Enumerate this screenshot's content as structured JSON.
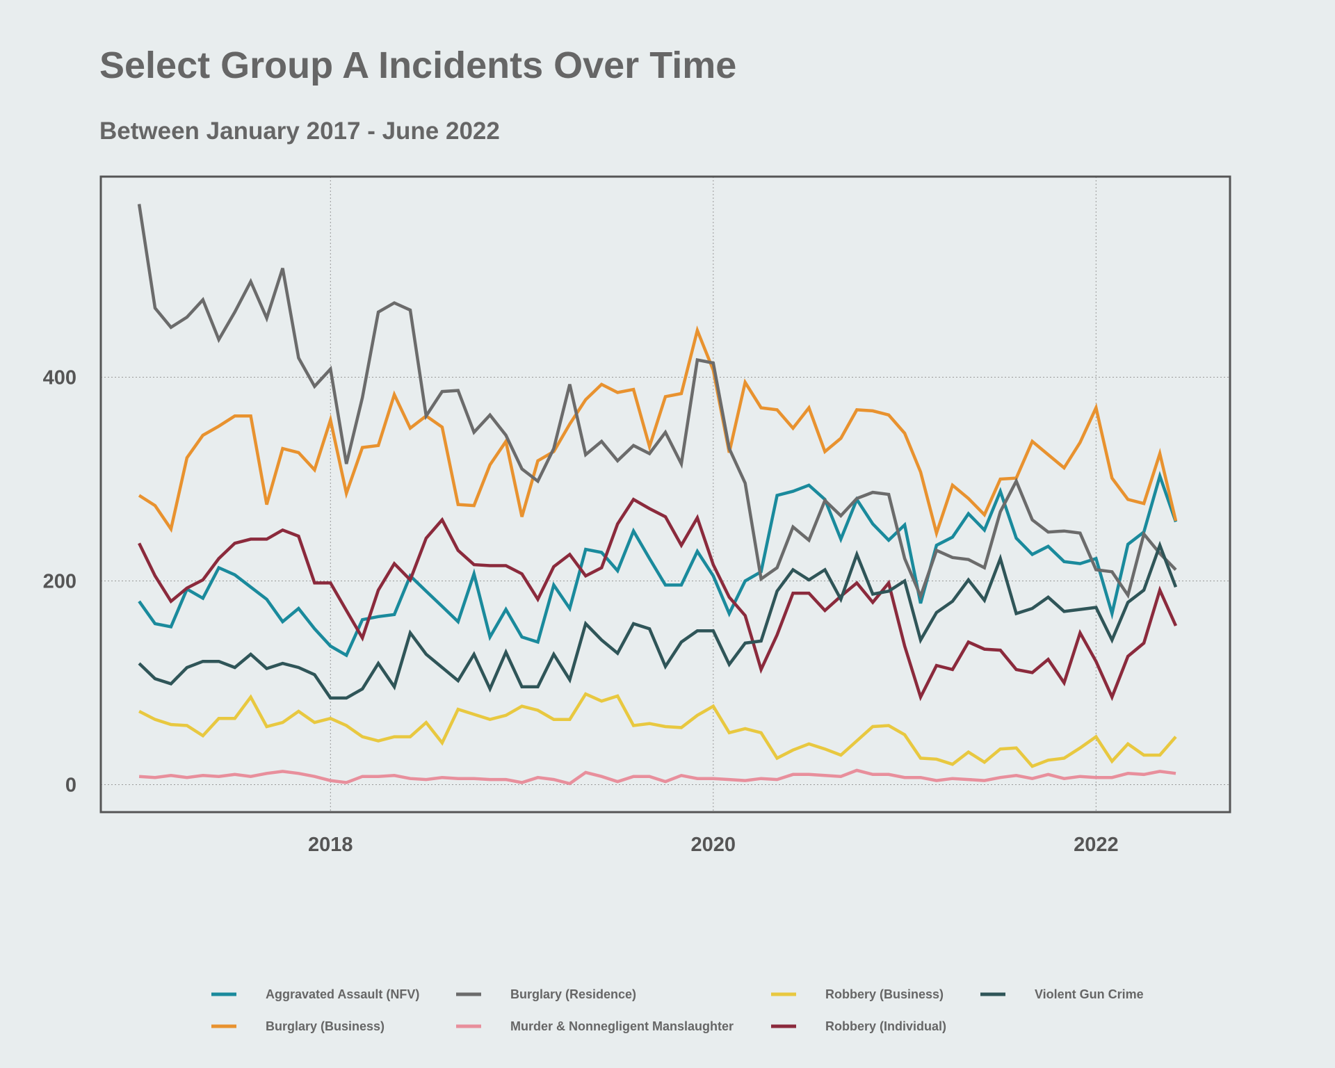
{
  "chart_data": {
    "type": "line",
    "title": "Select Group A Incidents Over Time",
    "subtitle": "Between January 2017 - June 2022",
    "xlabel": "",
    "ylabel": "",
    "x_start": "2017-01",
    "x_end": "2022-06",
    "xlim": [
      2016.8,
      2022.7
    ],
    "ylim": [
      -27,
      597
    ],
    "x_ticks": [
      {
        "value": 2018,
        "label": "2018"
      },
      {
        "value": 2020,
        "label": "2020"
      },
      {
        "value": 2022,
        "label": "2022"
      }
    ],
    "y_ticks": [
      {
        "value": 0,
        "label": "0"
      },
      {
        "value": 200,
        "label": "200"
      },
      {
        "value": 400,
        "label": "400"
      }
    ],
    "grid": true,
    "legend_position": "bottom",
    "series": [
      {
        "name": "Aggravated Assault (NFV)",
        "color": "#1a8a9c",
        "values": [
          180,
          158,
          155,
          192,
          183,
          213,
          206,
          194,
          182,
          160,
          173,
          153,
          136,
          127,
          162,
          165,
          167,
          205,
          190,
          175,
          160,
          207,
          145,
          172,
          145,
          140,
          196,
          173,
          231,
          228,
          210,
          249,
          222,
          196,
          196,
          229,
          205,
          168,
          200,
          209,
          284,
          288,
          294,
          280,
          241,
          280,
          256,
          240,
          255,
          178,
          235,
          243,
          266,
          250,
          288,
          242,
          226,
          234,
          219,
          217,
          222,
          168,
          236,
          248,
          303,
          258
        ]
      },
      {
        "name": "Burglary (Business)",
        "color": "#e8922f",
        "values": [
          284,
          274,
          251,
          321,
          343,
          352,
          362,
          362,
          275,
          330,
          326,
          309,
          358,
          286,
          331,
          333,
          383,
          350,
          362,
          351,
          275,
          274,
          314,
          337,
          263,
          318,
          327,
          354,
          378,
          393,
          385,
          388,
          332,
          381,
          384,
          446,
          407,
          326,
          395,
          370,
          368,
          350,
          370,
          327,
          340,
          368,
          367,
          363,
          345,
          307,
          247,
          294,
          281,
          265,
          300,
          301,
          337,
          324,
          311,
          336,
          370,
          301,
          280,
          276,
          325,
          259
        ]
      },
      {
        "name": "Burglary (Residence)",
        "color": "#6b6b6b",
        "values": [
          570,
          468,
          449,
          459,
          476,
          437,
          464,
          494,
          458,
          507,
          419,
          391,
          408,
          315,
          380,
          464,
          473,
          466,
          362,
          386,
          387,
          346,
          363,
          343,
          310,
          298,
          330,
          393,
          324,
          337,
          318,
          333,
          325,
          346,
          315,
          417,
          414,
          330,
          296,
          202,
          213,
          253,
          240,
          279,
          264,
          281,
          287,
          285,
          222,
          185,
          230,
          223,
          221,
          213,
          268,
          298,
          260,
          248,
          249,
          247,
          211,
          209,
          186,
          246,
          227,
          211
        ]
      },
      {
        "name": "Murder & Nonnegligent Manslaughter",
        "color": "#e88f9c",
        "values": [
          8,
          7,
          9,
          7,
          9,
          8,
          10,
          8,
          11,
          13,
          11,
          8,
          4,
          2,
          8,
          8,
          9,
          6,
          5,
          7,
          6,
          6,
          5,
          5,
          2,
          7,
          5,
          1,
          12,
          8,
          3,
          8,
          8,
          3,
          9,
          6,
          6,
          5,
          4,
          6,
          5,
          10,
          10,
          9,
          8,
          14,
          10,
          10,
          7,
          7,
          4,
          6,
          5,
          4,
          7,
          9,
          6,
          10,
          6,
          8,
          7,
          7,
          11,
          10,
          13,
          11
        ]
      },
      {
        "name": "Robbery (Business)",
        "color": "#e8c840",
        "values": [
          72,
          64,
          59,
          58,
          48,
          65,
          65,
          86,
          57,
          61,
          72,
          61,
          65,
          58,
          47,
          43,
          47,
          47,
          61,
          41,
          74,
          69,
          64,
          68,
          77,
          73,
          64,
          64,
          89,
          82,
          87,
          58,
          60,
          57,
          56,
          68,
          77,
          51,
          55,
          51,
          26,
          34,
          40,
          35,
          29,
          43,
          57,
          58,
          49,
          26,
          25,
          20,
          32,
          22,
          35,
          36,
          18,
          24,
          26,
          36,
          47,
          23,
          40,
          29,
          29,
          47
        ]
      },
      {
        "name": "Robbery (Individual)",
        "color": "#8b2a3c",
        "values": [
          237,
          205,
          180,
          193,
          201,
          222,
          237,
          241,
          241,
          250,
          244,
          198,
          198,
          171,
          144,
          191,
          217,
          201,
          242,
          260,
          230,
          216,
          215,
          215,
          207,
          182,
          214,
          226,
          205,
          213,
          256,
          280,
          271,
          263,
          235,
          262,
          216,
          184,
          166,
          113,
          147,
          188,
          188,
          171,
          185,
          198,
          179,
          198,
          136,
          86,
          117,
          113,
          140,
          133,
          132,
          113,
          110,
          123,
          100,
          149,
          121,
          86,
          126,
          139,
          191,
          156
        ]
      },
      {
        "name": "Violent Gun Crime",
        "color": "#2f5558",
        "values": [
          119,
          104,
          99,
          115,
          121,
          121,
          115,
          128,
          114,
          119,
          115,
          108,
          85,
          85,
          94,
          119,
          96,
          149,
          128,
          115,
          102,
          128,
          94,
          130,
          96,
          96,
          128,
          103,
          158,
          142,
          129,
          158,
          153,
          116,
          140,
          151,
          151,
          118,
          139,
          141,
          190,
          211,
          201,
          211,
          182,
          226,
          187,
          190,
          200,
          142,
          169,
          180,
          201,
          181,
          222,
          168,
          173,
          184,
          170,
          172,
          174,
          142,
          179,
          191,
          235,
          194
        ]
      }
    ]
  }
}
